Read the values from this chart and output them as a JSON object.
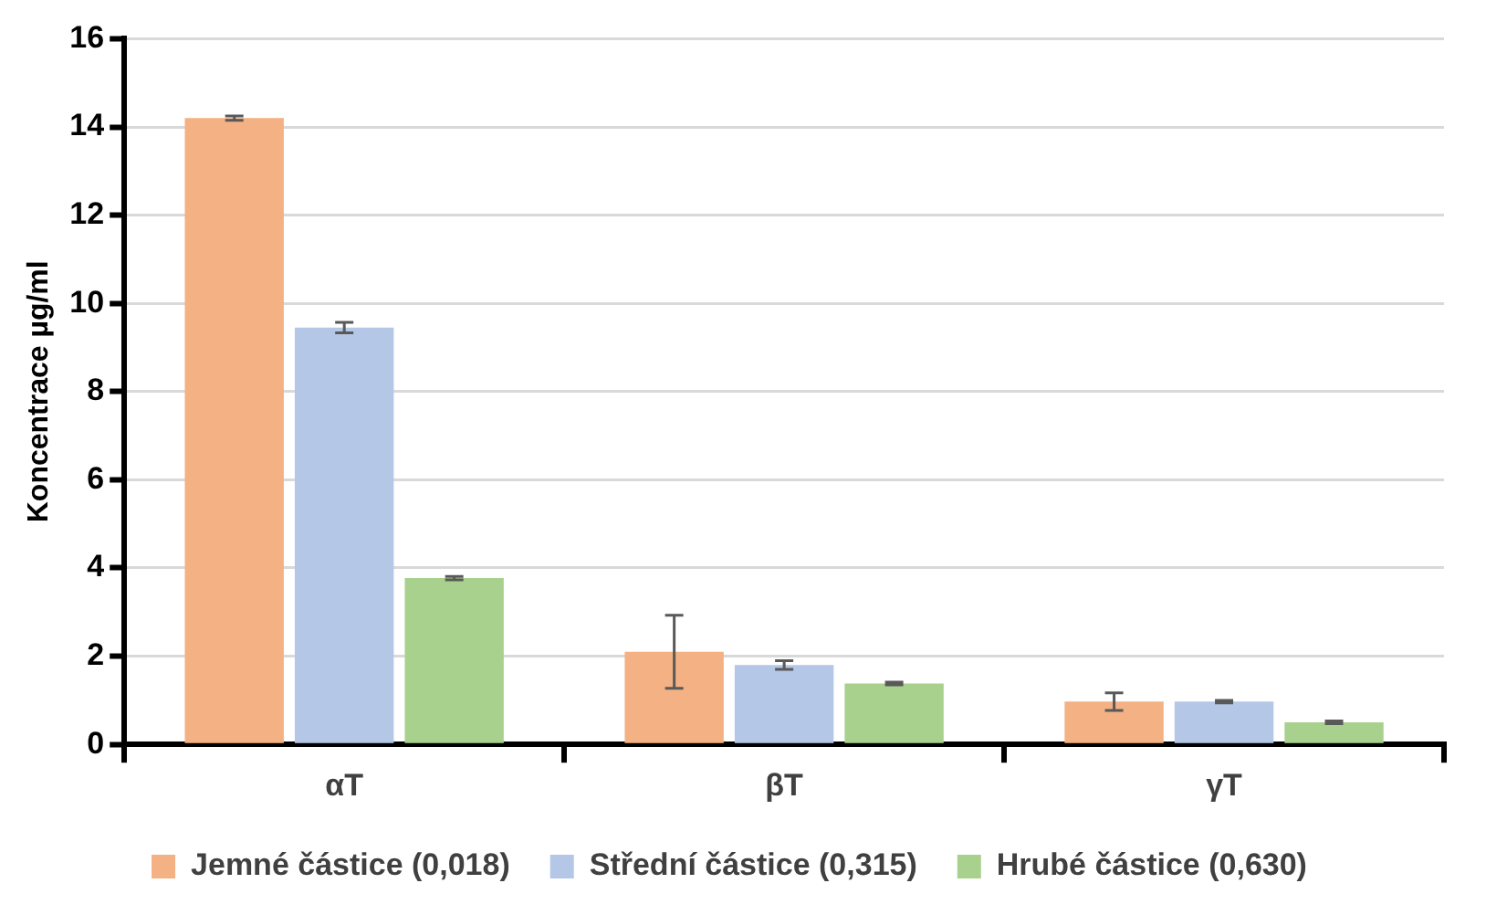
{
  "chart_data": {
    "type": "bar",
    "ylabel": "Koncentrace µg/ml",
    "categories": [
      "αT",
      "βT",
      "γT"
    ],
    "series": [
      {
        "name": "Jemné částice (0,018)",
        "color": "#f4b183",
        "values": [
          14.2,
          2.1,
          0.97
        ],
        "errors": [
          0.05,
          0.83,
          0.2
        ]
      },
      {
        "name": "Střední částice (0,315)",
        "color": "#b4c7e7",
        "values": [
          9.45,
          1.8,
          0.97
        ],
        "errors": [
          0.12,
          0.1,
          0.03
        ]
      },
      {
        "name": "Hrubé částice (0,630)",
        "color": "#a9d18e",
        "values": [
          3.77,
          1.38,
          0.5
        ],
        "errors": [
          0.04,
          0.03,
          0.03
        ]
      }
    ],
    "ylim": [
      0,
      16
    ],
    "yticks": [
      0,
      2,
      4,
      6,
      8,
      10,
      12,
      14,
      16
    ],
    "grid": "y",
    "legend": "bottom"
  }
}
